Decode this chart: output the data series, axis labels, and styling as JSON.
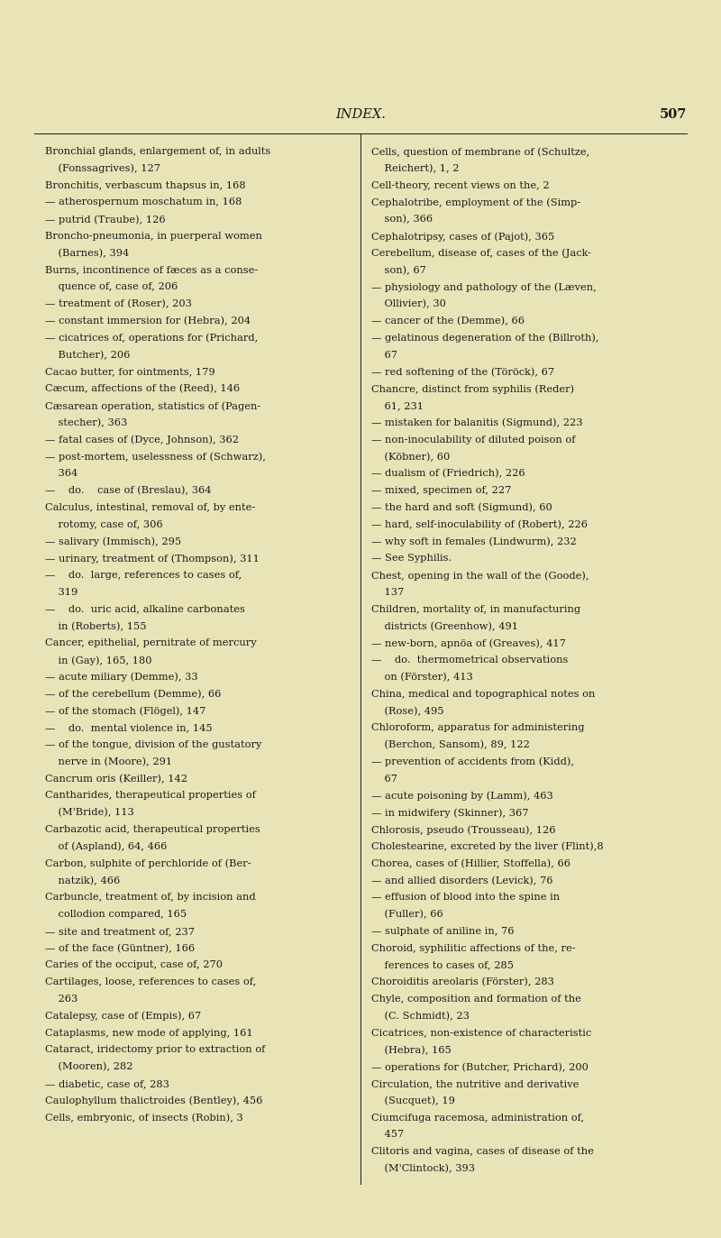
{
  "bg_color": "#e8e4b8",
  "text_color": "#1a1a1a",
  "title": "INDEX.",
  "page_num": "507",
  "title_fontsize": 10.5,
  "body_fontsize": 8.2,
  "left_column": [
    "Bronchial glands, enlargement of, in adults",
    "    (Fonssagrives), 127",
    "Bronchitis, verbascum thapsus in, 168",
    "— atherospernum moschatum in, 168",
    "— putrid (Traube), 126",
    "Broncho-pneumonia, in puerperal women",
    "    (Barnes), 394",
    "Burns, incontinence of fæces as a conse-",
    "    quence of, case of, 206",
    "— treatment of (Roser), 203",
    "— constant immersion for (Hebra), 204",
    "— cicatrices of, operations for (Prichard,",
    "    Butcher), 206",
    "Cacao butter, for ointments, 179",
    "Cæcum, affections of the (Reed), 146",
    "Cæsarean operation, statistics of (Pagen-",
    "    stecher), 363",
    "— fatal cases of (Dyce, Johnson), 362",
    "— post-mortem, uselessness of (Schwarz),",
    "    364",
    "—    do.    case of (Breslau), 364",
    "Calculus, intestinal, removal of, by ente-",
    "    rotomy, case of, 306",
    "— salivary (Immisch), 295",
    "— urinary, treatment of (Thompson), 311",
    "—    do.  large, references to cases of,",
    "    319",
    "—    do.  uric acid, alkaline carbonates",
    "    in (Roberts), 155",
    "Cancer, epithelial, pernitrate of mercury",
    "    in (Gay), 165, 180",
    "— acute miliary (Demme), 33",
    "— of the cerebellum (Demme), 66",
    "— of the stomach (Flögel), 147",
    "—    do.  mental violence in, 145",
    "— of the tongue, division of the gustatory",
    "    nerve in (Moore), 291",
    "Cancrum oris (Keiller), 142",
    "Cantharides, therapeutical properties of",
    "    (M'Bride), 113",
    "Carbazotic acid, therapeutical properties",
    "    of (Aspland), 64, 466",
    "Carbon, sulphite of perchloride of (Ber-",
    "    natzik), 466",
    "Carbuncle, treatment of, by incision and",
    "    collodion compared, 165",
    "— site and treatment of, 237",
    "— of the face (Güntner), 166",
    "Caries of the occiput, case of, 270",
    "Cartilages, loose, references to cases of,",
    "    263",
    "Catalepsy, case of (Empis), 67",
    "Cataplasms, new mode of applying, 161",
    "Cataract, iridectomy prior to extraction of",
    "    (Mooren), 282",
    "— diabetic, case of, 283",
    "Caulophyllum thalictroides (Bentley), 456",
    "Cells, embryonic, of insects (Robin), 3"
  ],
  "right_column": [
    "Cells, question of membrane of (Schultze,",
    "    Reichert), 1, 2",
    "Cell-theory, recent views on the, 2",
    "Cephalotribe, employment of the (Simp-",
    "    son), 366",
    "Cephalotripsy, cases of (Pajot), 365",
    "Cerebellum, disease of, cases of the (Jack-",
    "    son), 67",
    "— physiology and pathology of the (Læven,",
    "    Ollivier), 30",
    "— cancer of the (Demme), 66",
    "— gelatinous degeneration of the (Billroth),",
    "    67",
    "— red softening of the (Töröck), 67",
    "Chancre, distinct from syphilis (Reder)",
    "    61, 231",
    "— mistaken for balanitis (Sigmund), 223",
    "— non-inoculability of diluted poison of",
    "    (Köbner), 60",
    "— dualism of (Friedrich), 226",
    "— mixed, specimen of, 227",
    "— the hard and soft (Sigmund), 60",
    "— hard, self-inoculability of (Robert), 226",
    "— why soft in females (Lindwurm), 232",
    "— See Syphilis.",
    "Chest, opening in the wall of the (Goode),",
    "    137",
    "Children, mortality of, in manufacturing",
    "    districts (Greenhow), 491",
    "— new-born, apnöa of (Greaves), 417",
    "—    do.  thermometrical observations",
    "    on (Förster), 413",
    "China, medical and topographical notes on",
    "    (Rose), 495",
    "Chloroform, apparatus for administering",
    "    (Berchon, Sansom), 89, 122",
    "— prevention of accidents from (Kidd),",
    "    67",
    "— acute poisoning by (Lamm), 463",
    "— in midwifery (Skinner), 367",
    "Chlorosis, pseudo (Trousseau), 126",
    "Cholestearine, excreted by the liver (Flint),8",
    "Chorea, cases of (Hillier, Stoffella), 66",
    "— and allied disorders (Levick), 76",
    "— effusion of blood into the spine in",
    "    (Fuller), 66",
    "— sulphate of aniline in, 76",
    "Choroid, syphilitic affections of the, re-",
    "    ferences to cases of, 285",
    "Choroiditis areolaris (Förster), 283",
    "Chyle, composition and formation of the",
    "    (C. Schmidt), 23",
    "Cicatrices, non-existence of characteristic",
    "    (Hebra), 165",
    "— operations for (Butcher, Prichard), 200",
    "Circulation, the nutritive and derivative",
    "    (Sucquet), 19",
    "Ciumcifuga racemosa, administration of,",
    "    457",
    "Clitoris and vagina, cases of disease of the",
    "    (M'Clintock), 393"
  ]
}
